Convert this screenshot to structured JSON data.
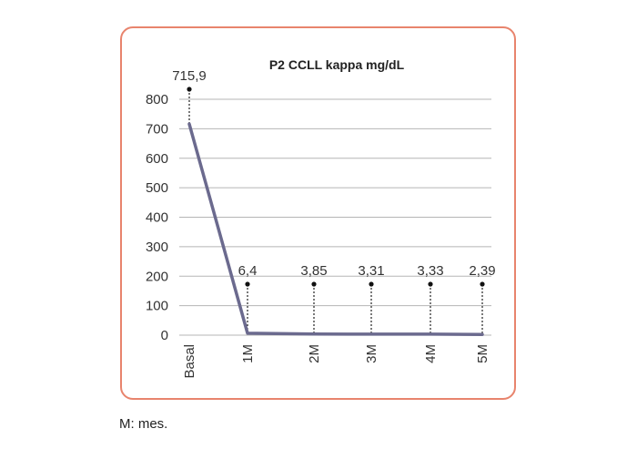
{
  "chart_data": {
    "type": "line",
    "title": "P2  CCLL kappa mg/dL",
    "categories": [
      "Basal",
      "1M",
      "2M",
      "3M",
      "4M",
      "5M"
    ],
    "series": [
      {
        "values": [
          715.9,
          6.4,
          3.85,
          3.31,
          3.33,
          2.39
        ],
        "color": "#6b6a8e"
      }
    ],
    "data_labels": [
      "715,9",
      "6,4",
      "3,85",
      "3,31",
      "3,33",
      "2,39"
    ],
    "yticks": [
      0,
      100,
      200,
      300,
      400,
      500,
      600,
      700,
      800
    ],
    "ylim": [
      0,
      800
    ],
    "grid": true,
    "xlabel": "",
    "ylabel": ""
  },
  "colors": {
    "border": "#e8846d",
    "line": "#6b6a8e",
    "grid": "#b5b5b5"
  },
  "footnote": "M: mes."
}
